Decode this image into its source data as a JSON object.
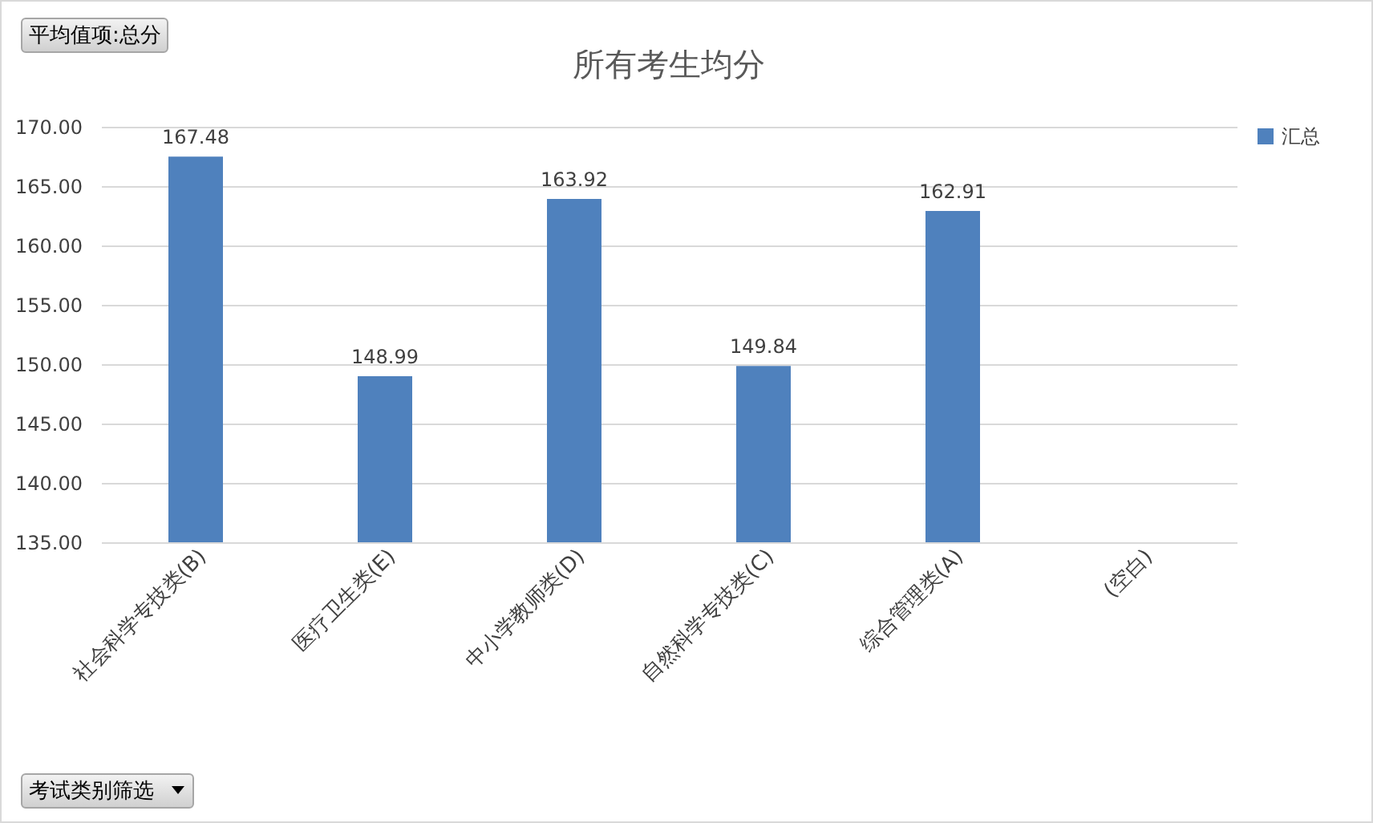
{
  "chart_data": {
    "type": "bar",
    "title": "所有考生均分",
    "categories": [
      "社会科学专技类(B)",
      "医疗卫生类(E)",
      "中小学教师类(D)",
      "自然科学专技类(C)",
      "综合管理类(A)",
      "(空白)"
    ],
    "series": [
      {
        "name": "汇总",
        "color": "#4f81bd",
        "values": [
          167.48,
          148.99,
          163.92,
          149.84,
          162.91,
          null
        ]
      }
    ],
    "ylim": [
      135,
      170
    ],
    "yticks": [
      {
        "value": 135,
        "label": "135.00"
      },
      {
        "value": 140,
        "label": "140.00"
      },
      {
        "value": 145,
        "label": "145.00"
      },
      {
        "value": 150,
        "label": "150.00"
      },
      {
        "value": 155,
        "label": "155.00"
      },
      {
        "value": 160,
        "label": "160.00"
      },
      {
        "value": 165,
        "label": "165.00"
      },
      {
        "value": 170,
        "label": "170.00"
      }
    ],
    "grid": "y",
    "legend": "right",
    "data_labels": true,
    "annotations": [
      "平均值项:总分",
      "考试类别筛选"
    ]
  }
}
